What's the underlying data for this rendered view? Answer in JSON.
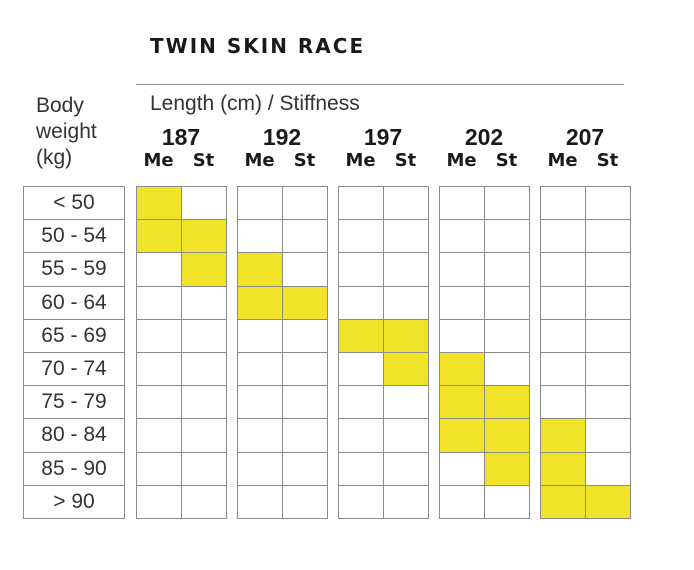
{
  "title": "TWIN SKIN RACE",
  "body_weight_label": [
    "Body",
    "weight",
    "(kg)"
  ],
  "length_label": "Length (cm) / Stiffness",
  "stiffness_labels": [
    "Me",
    "St"
  ],
  "colors": {
    "highlight": "#f1e428",
    "grid": "#8a8a8a"
  },
  "chart_data": {
    "type": "table",
    "title": "TWIN SKIN RACE",
    "row_header": "Body weight (kg)",
    "column_header": "Length (cm) / Stiffness",
    "weights": [
      "< 50",
      "50 - 54",
      "55 - 59",
      "60 - 64",
      "65 - 69",
      "70 - 74",
      "75 - 79",
      "80 - 84",
      "85 - 90",
      "> 90"
    ],
    "lengths": [
      "187",
      "192",
      "197",
      "202",
      "207"
    ],
    "stiffness": [
      "Me",
      "St"
    ],
    "recommended": [
      [
        1,
        0,
        0,
        0,
        0,
        0,
        0,
        0,
        0,
        0
      ],
      [
        1,
        1,
        0,
        0,
        0,
        0,
        0,
        0,
        0,
        0
      ],
      [
        0,
        1,
        1,
        0,
        0,
        0,
        0,
        0,
        0,
        0
      ],
      [
        0,
        0,
        1,
        1,
        0,
        0,
        0,
        0,
        0,
        0
      ],
      [
        0,
        0,
        0,
        0,
        1,
        1,
        0,
        0,
        0,
        0
      ],
      [
        0,
        0,
        0,
        0,
        0,
        1,
        1,
        0,
        0,
        0
      ],
      [
        0,
        0,
        0,
        0,
        0,
        0,
        1,
        1,
        0,
        0
      ],
      [
        0,
        0,
        0,
        0,
        0,
        0,
        1,
        1,
        1,
        0
      ],
      [
        0,
        0,
        0,
        0,
        0,
        0,
        0,
        1,
        1,
        0
      ],
      [
        0,
        0,
        0,
        0,
        0,
        0,
        0,
        0,
        1,
        1
      ]
    ]
  }
}
